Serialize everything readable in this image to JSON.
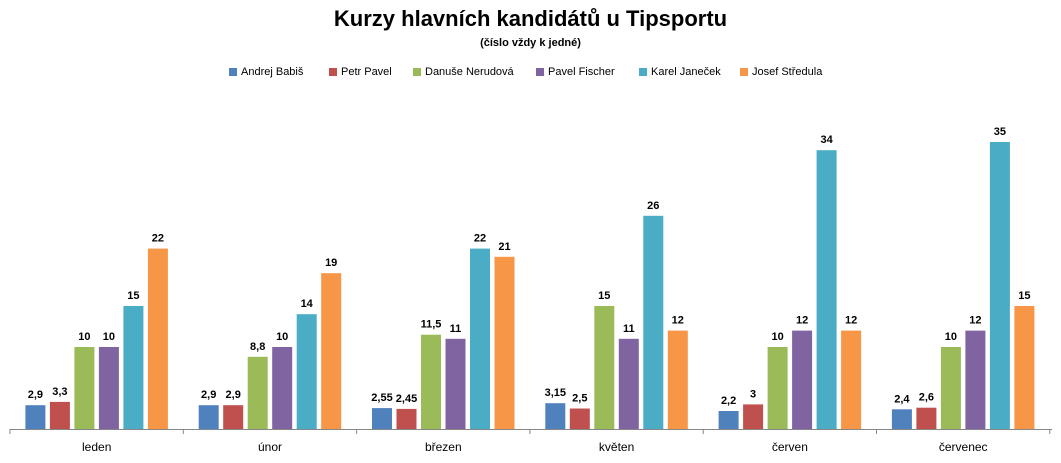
{
  "chart_data": {
    "type": "bar",
    "title": "Kurzy hlavních kandidátů u Tipsportu",
    "subtitle": "(číslo vždy k jedné)",
    "categories": [
      "leden",
      "únor",
      "březen",
      "květen",
      "červen",
      "červenec"
    ],
    "series": [
      {
        "name": "Andrej Babiš",
        "color": "#4F81BD",
        "values": [
          2.9,
          2.9,
          2.55,
          3.15,
          2.2,
          2.4
        ],
        "labels": [
          "2,9",
          "2,9",
          "2,55",
          "3,15",
          "2,2",
          "2,4"
        ]
      },
      {
        "name": "Petr Pavel",
        "color": "#C0504D",
        "values": [
          3.3,
          2.9,
          2.45,
          2.5,
          3,
          2.6
        ],
        "labels": [
          "3,3",
          "2,9",
          "2,45",
          "2,5",
          "3",
          "2,6"
        ]
      },
      {
        "name": "Danuše Nerudová",
        "color": "#9BBB59",
        "values": [
          10,
          8.8,
          11.5,
          15,
          10,
          10
        ],
        "labels": [
          "10",
          "8,8",
          "11,5",
          "15",
          "10",
          "10"
        ]
      },
      {
        "name": "Pavel Fischer",
        "color": "#8064A2",
        "values": [
          10,
          10,
          11,
          11,
          12,
          12
        ],
        "labels": [
          "10",
          "10",
          "11",
          "11",
          "12",
          "12"
        ]
      },
      {
        "name": "Karel Janeček",
        "color": "#4BACC6",
        "values": [
          15,
          14,
          22,
          26,
          34,
          35
        ],
        "labels": [
          "15",
          "14",
          "22",
          "26",
          "34",
          "35"
        ]
      },
      {
        "name": "Josef Středula",
        "color": "#F79646",
        "values": [
          22,
          19,
          21,
          12,
          12,
          15
        ],
        "labels": [
          "22",
          "19",
          "21",
          "12",
          "12",
          "15"
        ]
      }
    ],
    "ylim": [
      0,
      35
    ],
    "legend": "top",
    "grid": false
  }
}
